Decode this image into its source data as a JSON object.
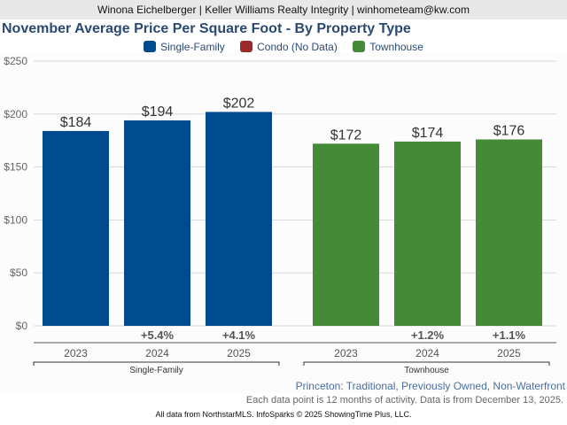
{
  "header": {
    "agent_line": "Winona Eichelberger | Keller Williams Realty Integrity | winhometeam@kw.com"
  },
  "chart_data": {
    "type": "bar",
    "title": "November Average Price Per Square Foot - By Property Type",
    "legend": [
      {
        "label": "Single-Family",
        "color": "#004b8d"
      },
      {
        "label": "Condo (No Data)",
        "color": "#9b2a2a"
      },
      {
        "label": "Townhouse",
        "color": "#458a37"
      }
    ],
    "legend_position": "top-center",
    "ylim": [
      0,
      250
    ],
    "yticks": [
      0,
      50,
      100,
      150,
      200,
      250
    ],
    "ytick_labels": [
      "$0",
      "$50",
      "$100",
      "$150",
      "$200",
      "$250"
    ],
    "grid": true,
    "groups": [
      {
        "name": "Single-Family",
        "color": "#004b8d",
        "categories": [
          "2023",
          "2024",
          "2025"
        ],
        "values": [
          184,
          194,
          202
        ],
        "value_labels": [
          "$184",
          "$194",
          "$202"
        ],
        "changes": [
          "",
          "+5.4%",
          "+4.1%"
        ]
      },
      {
        "name": "Townhouse",
        "color": "#458a37",
        "categories": [
          "2023",
          "2024",
          "2025"
        ],
        "values": [
          172,
          174,
          176
        ],
        "value_labels": [
          "$172",
          "$174",
          "$176"
        ],
        "changes": [
          "",
          "+1.2%",
          "+1.1%"
        ]
      }
    ],
    "xlabel": "",
    "ylabel": ""
  },
  "footer": {
    "subtitle": "Princeton: Traditional, Previously Owned, Non-Waterfront",
    "note": "Each data point is 12 months of activity. Data is from December 13, 2025.",
    "credit": "All data from NorthstarMLS. InfoSparks © 2025 ShowingTime Plus, LLC."
  }
}
